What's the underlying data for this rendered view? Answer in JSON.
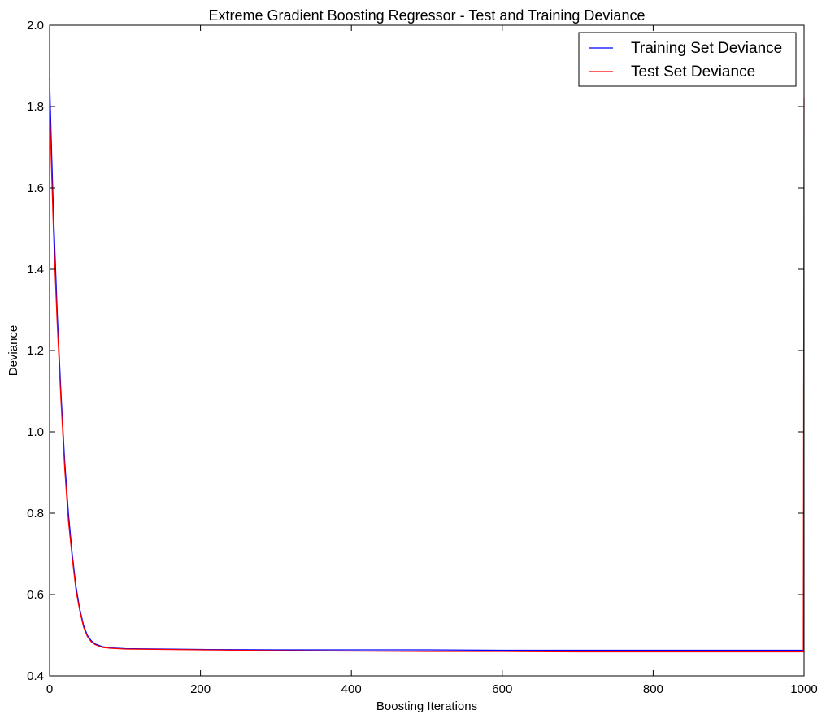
{
  "chart_data": {
    "type": "line",
    "title": "Extreme Gradient Boosting Regressor - Test and Training Deviance",
    "xlabel": "Boosting Iterations",
    "ylabel": "Deviance",
    "xlim": [
      0,
      1000
    ],
    "ylim": [
      0.4,
      2.0
    ],
    "x_ticks": [
      "0",
      "200",
      "400",
      "600",
      "800",
      "1000"
    ],
    "y_ticks": [
      "0.4",
      "0.6",
      "0.8",
      "1.0",
      "1.2",
      "1.4",
      "1.6",
      "1.8",
      "2.0"
    ],
    "grid": false,
    "legend_position": "top-right",
    "series": [
      {
        "name": "Training Set Deviance",
        "color": "#0000ff",
        "x": [
          0,
          1,
          3,
          5,
          8,
          10,
          15,
          20,
          25,
          30,
          35,
          40,
          45,
          50,
          55,
          60,
          70,
          80,
          100,
          150,
          200,
          300,
          400,
          500,
          600,
          700,
          800,
          900,
          999
        ],
        "y": [
          1.87,
          1.8,
          1.67,
          1.55,
          1.4,
          1.3,
          1.1,
          0.93,
          0.8,
          0.7,
          0.62,
          0.565,
          0.525,
          0.5,
          0.487,
          0.479,
          0.472,
          0.469,
          0.467,
          0.466,
          0.465,
          0.464,
          0.464,
          0.464,
          0.463,
          0.463,
          0.463,
          0.463,
          0.463
        ]
      },
      {
        "name": "Test Set Deviance",
        "color": "#ff0000",
        "x": [
          0,
          1,
          3,
          5,
          8,
          10,
          15,
          20,
          25,
          30,
          35,
          40,
          45,
          50,
          55,
          60,
          70,
          80,
          100,
          150,
          200,
          300,
          400,
          500,
          600,
          700,
          800,
          900,
          999,
          1000
        ],
        "y": [
          1.8,
          1.74,
          1.62,
          1.5,
          1.36,
          1.27,
          1.08,
          0.91,
          0.78,
          0.69,
          0.61,
          0.56,
          0.52,
          0.497,
          0.484,
          0.477,
          0.47,
          0.468,
          0.466,
          0.465,
          0.464,
          0.462,
          0.461,
          0.46,
          0.46,
          0.459,
          0.459,
          0.459,
          0.459,
          1.82
        ]
      }
    ]
  }
}
